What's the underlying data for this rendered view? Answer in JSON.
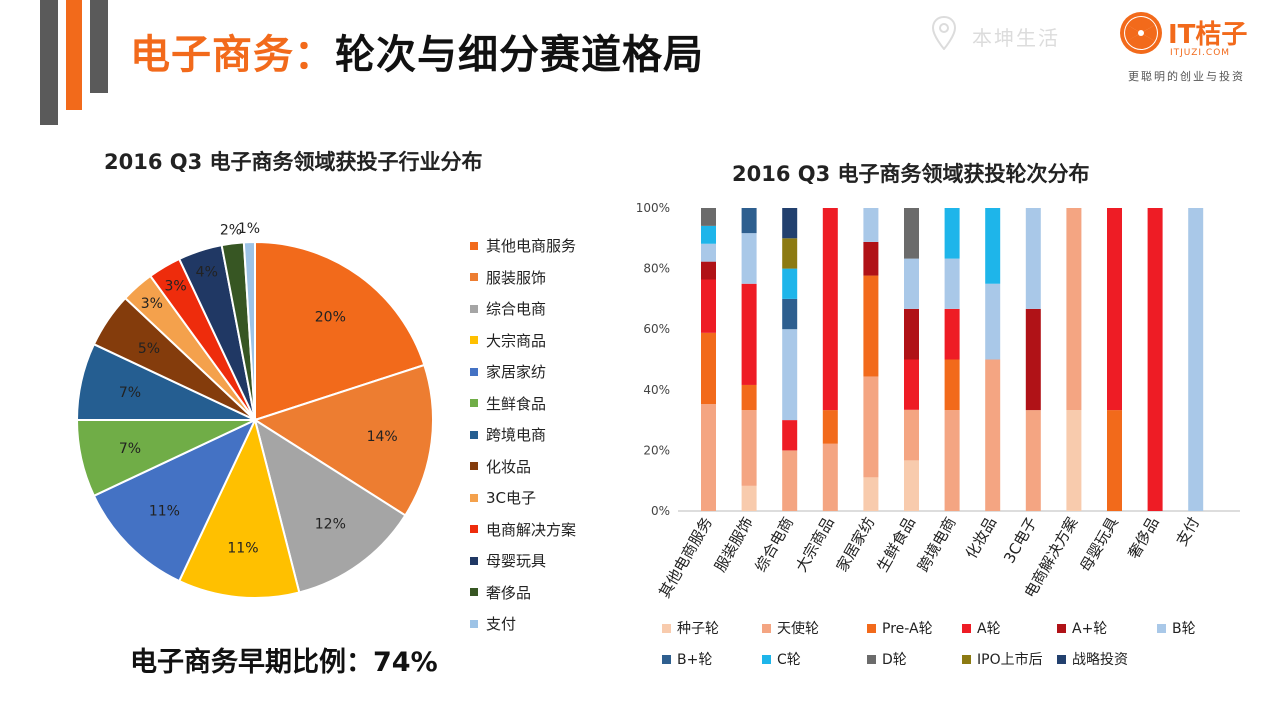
{
  "header": {
    "title_part1": "电子商务",
    "title_sep": "：",
    "title_part2": "轮次与细分赛道格局",
    "watermark": "本坤生活"
  },
  "logo": {
    "brand": "IT桔子",
    "url": "ITJUZI.COM",
    "slogan": "更聪明的创业与投资"
  },
  "colors": {
    "accent": "#f26a1b",
    "gray_bar": "#5a5a5a"
  },
  "footer": {
    "early_ratio_text": "电子商务早期比例：74%"
  },
  "chart_data": [
    {
      "type": "pie",
      "title": "2016 Q3 电子商务领域获投子行业分布",
      "slices": [
        {
          "label": "其他电商服务",
          "value": 20,
          "display": "20%",
          "color": "#f26a1b"
        },
        {
          "label": "服装服饰",
          "value": 14,
          "display": "14%",
          "color": "#ed7d31"
        },
        {
          "label": "综合电商",
          "value": 12,
          "display": "12%",
          "color": "#a5a5a5"
        },
        {
          "label": "大宗商品",
          "value": 11,
          "display": "11%",
          "color": "#ffc000"
        },
        {
          "label": "家居家纺",
          "value": 11,
          "display": "11%",
          "color": "#4472c4"
        },
        {
          "label": "生鲜食品",
          "value": 7,
          "display": "7%",
          "color": "#70ad47"
        },
        {
          "label": "跨境电商",
          "value": 7,
          "display": "7%",
          "color": "#255e91"
        },
        {
          "label": "化妆品",
          "value": 5,
          "display": "5%",
          "color": "#843c0c"
        },
        {
          "label": "3C电子",
          "value": 3,
          "display": "3%",
          "color": "#f4a14c"
        },
        {
          "label": "电商解决方案",
          "value": 3,
          "display": "3%",
          "color": "#ee2c0c"
        },
        {
          "label": "母婴玩具",
          "value": 4,
          "display": "4%",
          "color": "#203864"
        },
        {
          "label": "奢侈品",
          "value": 2,
          "display": "2%",
          "color": "#375623"
        },
        {
          "label": "支付",
          "value": 1,
          "display": "1%",
          "color": "#9dc3e6"
        }
      ]
    },
    {
      "type": "bar",
      "stacked": "percent",
      "title": "2016 Q3 电子商务领域获投轮次分布",
      "categories": [
        "其他电商服务",
        "服装服饰",
        "综合电商",
        "大宗商品",
        "家居家纺",
        "生鲜食品",
        "跨境电商",
        "化妆品",
        "3C电子",
        "电商解决方案",
        "母婴玩具",
        "奢侈品",
        "支付"
      ],
      "ylim": [
        0,
        100
      ],
      "yticks": [
        "0%",
        "20%",
        "40%",
        "60%",
        "80%",
        "100%"
      ],
      "series": [
        {
          "name": "种子轮",
          "color": "#f8cbad",
          "values": [
            0,
            8.3,
            0,
            0,
            11.1,
            16.7,
            0,
            0,
            0,
            33.3,
            0,
            0,
            0
          ]
        },
        {
          "name": "天使轮",
          "color": "#f4a582",
          "values": [
            35.3,
            25,
            20,
            22.2,
            33.3,
            16.7,
            33.3,
            50,
            33.3,
            66.7,
            0,
            0,
            0
          ]
        },
        {
          "name": "Pre-A轮",
          "color": "#f26a1b",
          "values": [
            23.5,
            8.3,
            0,
            11.1,
            33.3,
            0,
            16.7,
            0,
            0,
            0,
            33.3,
            0,
            0
          ]
        },
        {
          "name": "A轮",
          "color": "#ee1c25",
          "values": [
            17.6,
            33.4,
            10,
            66.7,
            0,
            16.6,
            16.7,
            0,
            0,
            0,
            66.7,
            100,
            0
          ]
        },
        {
          "name": "A+轮",
          "color": "#b01217",
          "values": [
            5.9,
            0,
            0,
            0,
            11.1,
            16.7,
            0,
            0,
            33.4,
            0,
            0,
            0,
            0
          ]
        },
        {
          "name": "B轮",
          "color": "#a9c8e8",
          "values": [
            5.9,
            16.7,
            30,
            0,
            11.2,
            16.6,
            16.6,
            25,
            33.3,
            0,
            0,
            0,
            100
          ]
        },
        {
          "name": "B+轮",
          "color": "#2e5f8f",
          "values": [
            0,
            8.3,
            10,
            0,
            0,
            0,
            0,
            0,
            0,
            0,
            0,
            0,
            0
          ]
        },
        {
          "name": "C轮",
          "color": "#1eb5ea",
          "values": [
            5.9,
            0,
            10,
            0,
            0,
            0,
            16.7,
            25,
            0,
            0,
            0,
            0,
            0
          ]
        },
        {
          "name": "D轮",
          "color": "#6b6b6b",
          "values": [
            5.9,
            0,
            0,
            0,
            0,
            16.7,
            0,
            0,
            0,
            0,
            0,
            0,
            0
          ]
        },
        {
          "name": "IPO上市后",
          "color": "#8c7a12",
          "values": [
            0,
            0,
            10,
            0,
            0,
            0,
            0,
            0,
            0,
            0,
            0,
            0,
            0
          ]
        },
        {
          "name": "战略投资",
          "color": "#22406e",
          "values": [
            0,
            0,
            10,
            0,
            0,
            0,
            0,
            0,
            0,
            0,
            0,
            0,
            0
          ]
        }
      ]
    }
  ]
}
